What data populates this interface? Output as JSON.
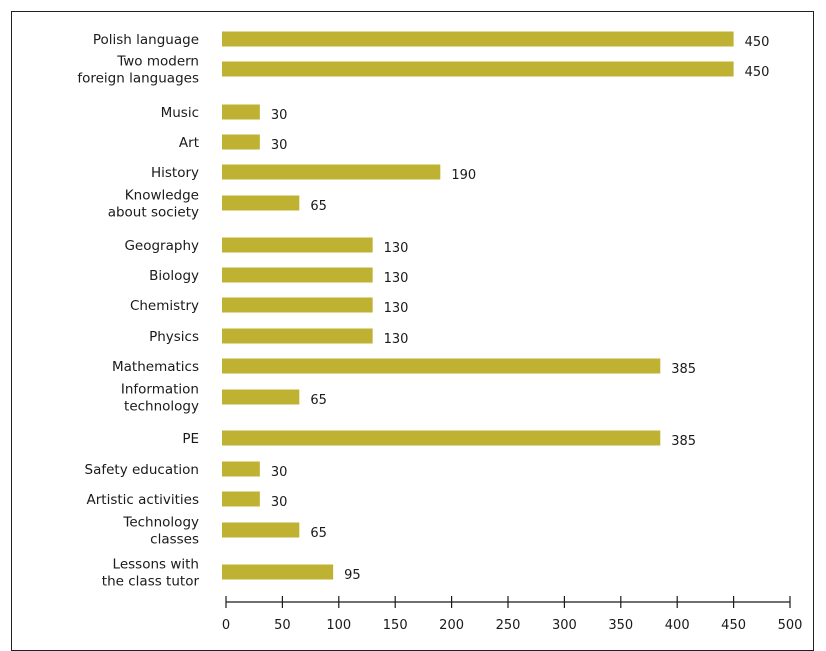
{
  "chart_data": {
    "type": "bar",
    "orientation": "horizontal",
    "categories": [
      [
        "Polish language"
      ],
      [
        "Two modern",
        "foreign languages"
      ],
      [
        "Music"
      ],
      [
        "Art"
      ],
      [
        "History"
      ],
      [
        "Knowledge",
        "about society"
      ],
      [
        "Geography"
      ],
      [
        "Biology"
      ],
      [
        "Chemistry"
      ],
      [
        "Physics"
      ],
      [
        "Mathematics"
      ],
      [
        "Information",
        "technology"
      ],
      [
        "PE"
      ],
      [
        "Safety education"
      ],
      [
        "Artistic activities"
      ],
      [
        "Technology",
        "classes"
      ],
      [
        "Lessons with",
        "the class tutor"
      ]
    ],
    "values": [
      450,
      450,
      30,
      30,
      190,
      65,
      130,
      130,
      130,
      130,
      385,
      65,
      385,
      30,
      30,
      65,
      95
    ],
    "value_labels": [
      "450",
      "450",
      "30",
      "30",
      "190",
      "65",
      "130",
      "130",
      "130",
      "130",
      "385",
      "65",
      "385",
      "30",
      "30",
      "65",
      "95"
    ],
    "xlim": [
      0,
      500
    ],
    "xticks": [
      0,
      50,
      100,
      150,
      200,
      250,
      300,
      350,
      400,
      450,
      500
    ],
    "grid": false,
    "legend": "none",
    "bar_color": "#bfb131",
    "title": "",
    "xlabel": "",
    "ylabel": ""
  }
}
